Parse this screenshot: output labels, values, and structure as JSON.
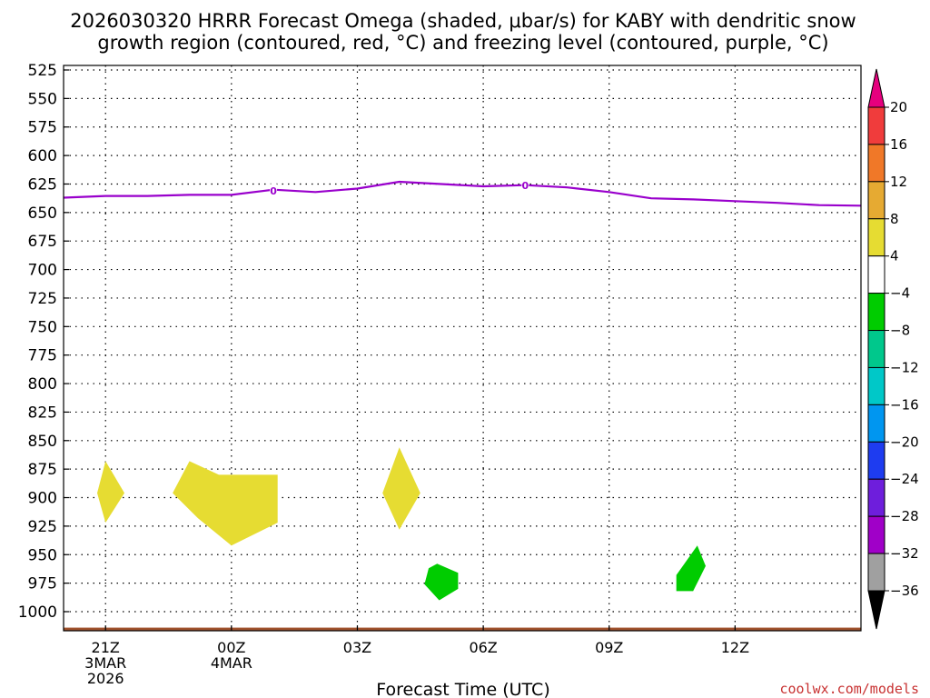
{
  "chart_data": {
    "type": "heatmap",
    "title_line1": "2026030320 HRRR Forecast Omega (shaded, μbar/s) for KABY with dendritic snow",
    "title_line2": "growth region (contoured, red, °C) and freezing level (contoured, purple, °C)",
    "xlabel": "Forecast Time (UTC)",
    "ylabel": "",
    "credit": "coolwx.com/models",
    "x_unit": "hours after 2026030320",
    "xlim": [
      0,
      19
    ],
    "ylim": [
      1020,
      520
    ],
    "y_ticks": [
      525,
      550,
      575,
      600,
      625,
      650,
      675,
      700,
      725,
      750,
      775,
      800,
      825,
      850,
      875,
      900,
      925,
      950,
      975,
      1000
    ],
    "x_ticks": [
      {
        "x": 1,
        "lines": [
          "21Z",
          "3MAR",
          "2026"
        ]
      },
      {
        "x": 4,
        "lines": [
          "00Z",
          "4MAR"
        ]
      },
      {
        "x": 7,
        "lines": [
          "03Z"
        ]
      },
      {
        "x": 10,
        "lines": [
          "06Z"
        ]
      },
      {
        "x": 13,
        "lines": [
          "09Z"
        ]
      },
      {
        "x": 16,
        "lines": [
          "12Z"
        ]
      }
    ],
    "freezing_level": {
      "label": "0",
      "color": "#9900cc",
      "points": [
        [
          0,
          637
        ],
        [
          1,
          635.5
        ],
        [
          2,
          635.5
        ],
        [
          3,
          634.5
        ],
        [
          4,
          634.5
        ],
        [
          5,
          630
        ],
        [
          6,
          632
        ],
        [
          7,
          629
        ],
        [
          8,
          623
        ],
        [
          9,
          625
        ],
        [
          10,
          627
        ],
        [
          11,
          626
        ],
        [
          12,
          628
        ],
        [
          13,
          632
        ],
        [
          14,
          637.5
        ],
        [
          15,
          638.5
        ],
        [
          16,
          640
        ],
        [
          17,
          641.5
        ],
        [
          18,
          643.5
        ],
        [
          19,
          644
        ]
      ],
      "label_positions": [
        [
          5,
          630.5
        ],
        [
          11,
          626
        ]
      ]
    },
    "omega_regions": [
      {
        "value": "4 to 8",
        "color": "#e6dc32",
        "points": [
          [
            1.0,
            868
          ],
          [
            1.45,
            896
          ],
          [
            1.0,
            922
          ],
          [
            0.8,
            896
          ]
        ]
      },
      {
        "value": "4 to 8",
        "color": "#e6dc32",
        "points": [
          [
            3.0,
            868
          ],
          [
            3.7,
            880
          ],
          [
            5.1,
            880
          ],
          [
            5.1,
            922
          ],
          [
            4.0,
            942
          ],
          [
            3.2,
            918
          ],
          [
            2.6,
            896
          ]
        ]
      },
      {
        "value": "4 to 8",
        "color": "#e6dc32",
        "points": [
          [
            8.0,
            856
          ],
          [
            8.5,
            896
          ],
          [
            8.0,
            928
          ],
          [
            7.6,
            896
          ]
        ]
      },
      {
        "value": "-8 to -4",
        "color": "#00cc00",
        "points": [
          [
            8.9,
            958
          ],
          [
            9.4,
            966
          ],
          [
            9.4,
            980
          ],
          [
            8.95,
            990
          ],
          [
            8.6,
            976
          ],
          [
            8.7,
            962
          ]
        ]
      },
      {
        "value": "-8 to -4",
        "color": "#00cc00",
        "points": [
          [
            14.6,
            968
          ],
          [
            15.1,
            942
          ],
          [
            15.3,
            960
          ],
          [
            15.0,
            982
          ],
          [
            14.6,
            982
          ]
        ]
      }
    ],
    "terrain": {
      "color": "#a0522d",
      "top_pressure": 1014
    },
    "colorbar": {
      "labels": [
        "20",
        "16",
        "12",
        "8",
        "4",
        "−4",
        "−8",
        "−12",
        "−16",
        "−20",
        "−24",
        "−28",
        "−32",
        "−36"
      ],
      "top_color": "#e6007e",
      "bottom_color": "#000000",
      "colors": [
        "#f03c3c",
        "#f07828",
        "#e6aa32",
        "#e6dc32",
        "#ffffff",
        "#00cc00",
        "#00c88c",
        "#00c8c8",
        "#0096f0",
        "#1e3cf0",
        "#6e1edc",
        "#a000c8",
        "#a0a0a0"
      ]
    }
  }
}
